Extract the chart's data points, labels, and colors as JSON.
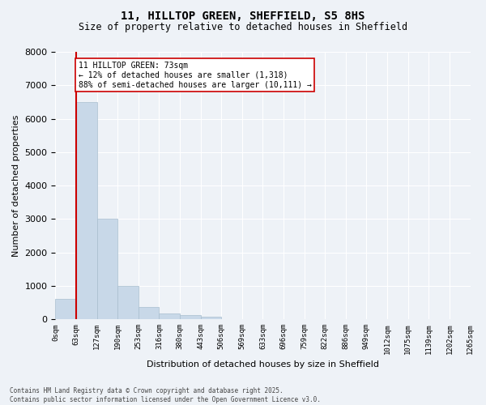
{
  "title_line1": "11, HILLTOP GREEN, SHEFFIELD, S5 8HS",
  "title_line2": "Size of property relative to detached houses in Sheffield",
  "xlabel": "Distribution of detached houses by size in Sheffield",
  "ylabel": "Number of detached properties",
  "bar_color": "#c8d8e8",
  "bar_edge_color": "#a8bece",
  "bin_labels": [
    "0sqm",
    "63sqm",
    "127sqm",
    "190sqm",
    "253sqm",
    "316sqm",
    "380sqm",
    "443sqm",
    "506sqm",
    "569sqm",
    "633sqm",
    "696sqm",
    "759sqm",
    "822sqm",
    "886sqm",
    "949sqm",
    "1012sqm",
    "1075sqm",
    "1139sqm",
    "1202sqm",
    "1265sqm"
  ],
  "bar_values": [
    600,
    6500,
    3000,
    1000,
    375,
    175,
    125,
    75,
    10,
    5,
    3,
    2,
    1,
    1,
    0,
    0,
    0,
    0,
    0,
    0
  ],
  "ylim": [
    0,
    8000
  ],
  "yticks": [
    0,
    1000,
    2000,
    3000,
    4000,
    5000,
    6000,
    7000,
    8000
  ],
  "property_line_x": 1.0,
  "annotation_line1": "11 HILLTOP GREEN: 73sqm",
  "annotation_line2": "← 12% of detached houses are smaller (1,318)",
  "annotation_line3": "88% of semi-detached houses are larger (10,111) →",
  "vline_color": "#cc0000",
  "annotation_box_color": "#ffffff",
  "annotation_box_edge": "#cc0000",
  "footer_line1": "Contains HM Land Registry data © Crown copyright and database right 2025.",
  "footer_line2": "Contains public sector information licensed under the Open Government Licence v3.0.",
  "background_color": "#eef2f7",
  "grid_color": "#ffffff"
}
